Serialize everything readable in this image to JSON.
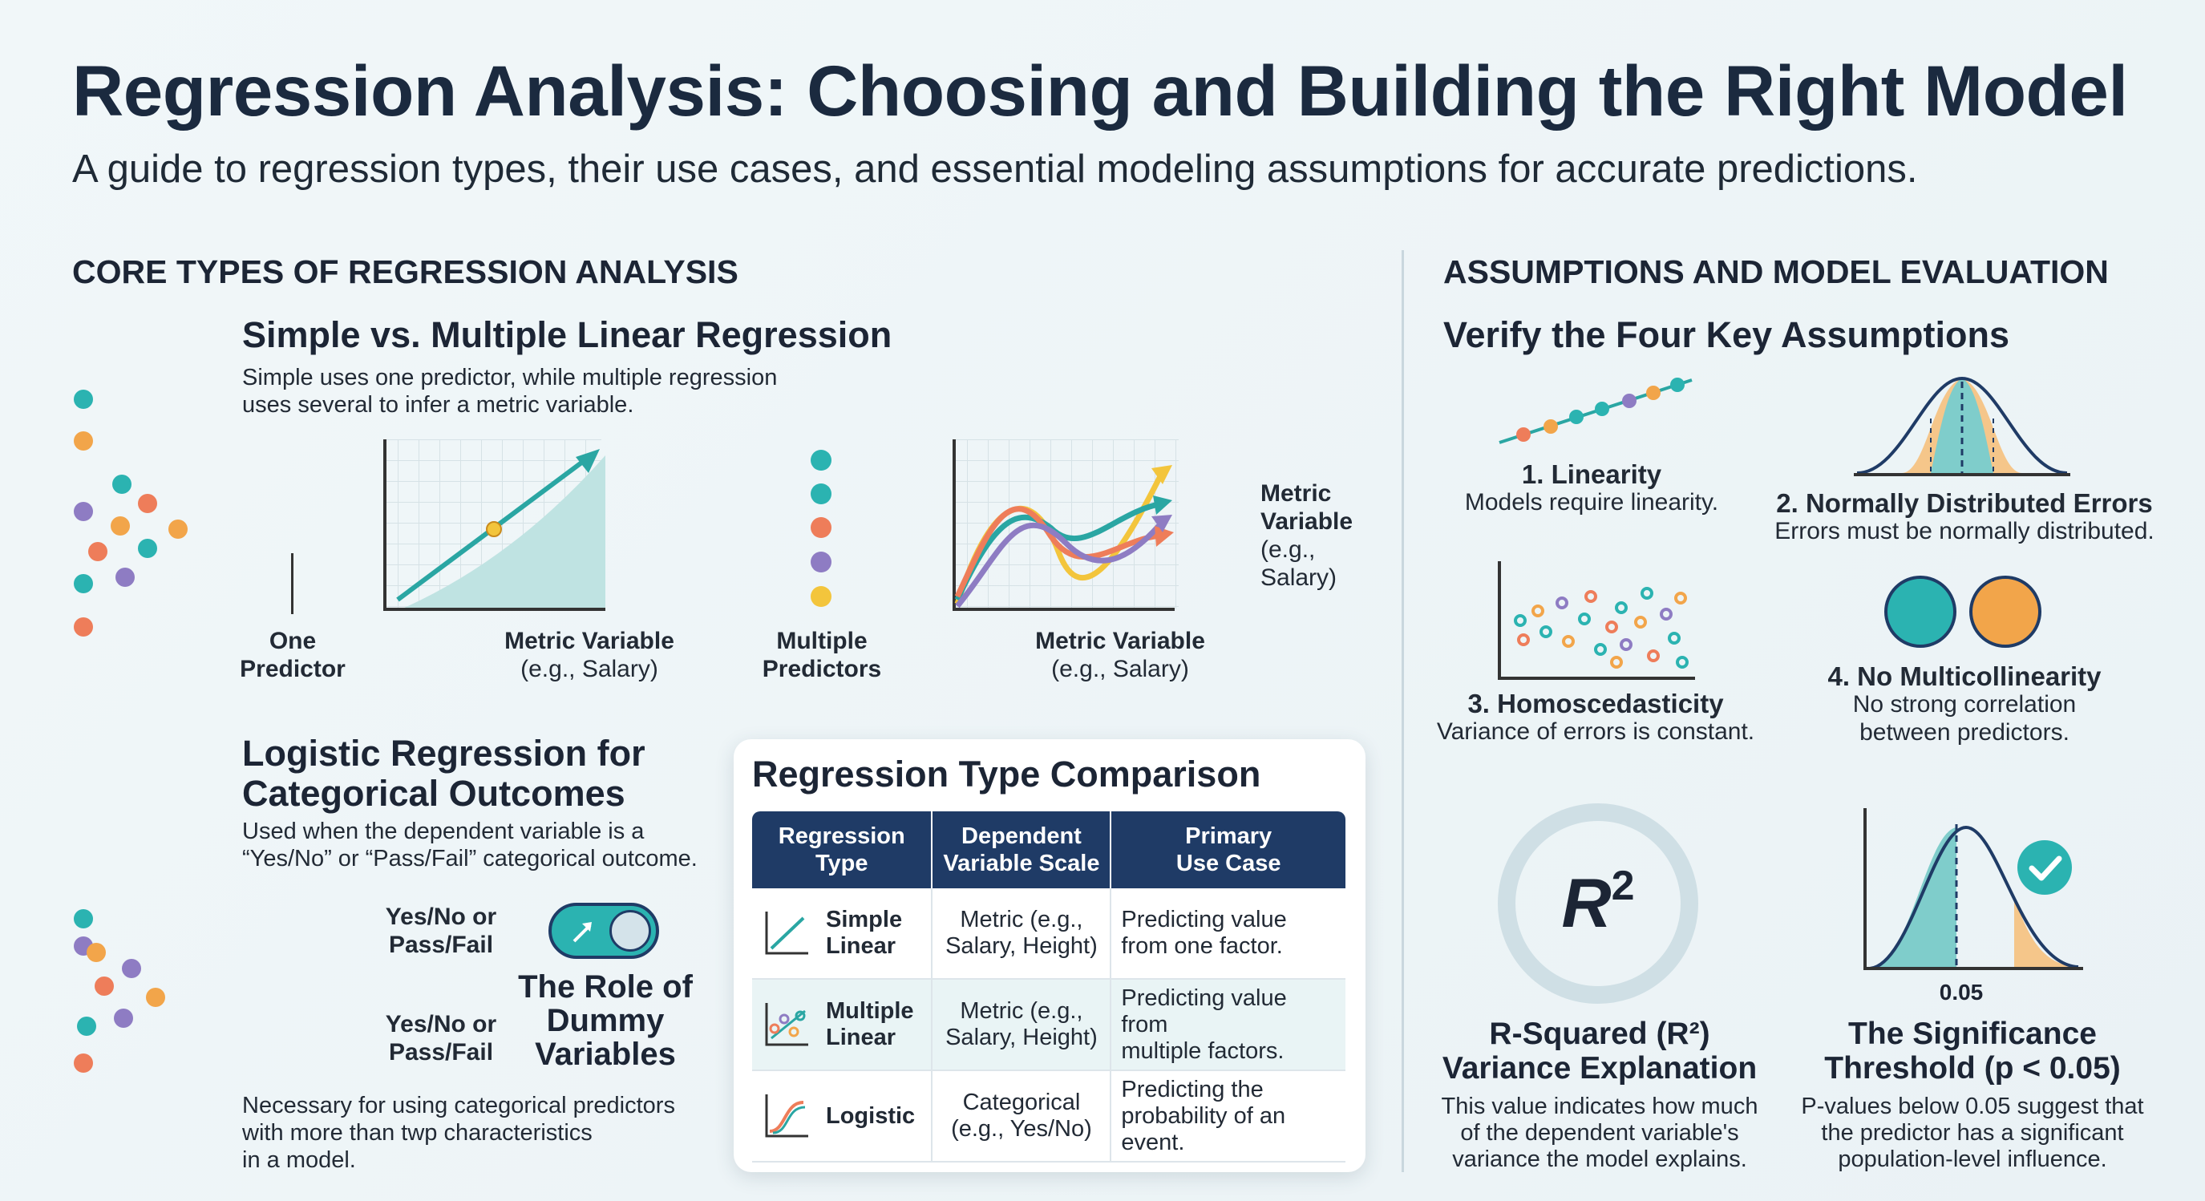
{
  "header": {
    "title": "Regression Analysis: Choosing and Building the Right Model",
    "subtitle": "A guide to regression types, their use cases, and essential modeling assumptions for accurate predictions."
  },
  "left": {
    "section_title": "CORE TYPES OF REGRESSION ANALYSIS",
    "linear": {
      "heading": "Simple vs. Multiple Linear Regression",
      "desc_line1": "Simple uses one predictor, while multiple regression",
      "desc_line2": "uses several to infer a metric variable.",
      "one_predictor_1": "One",
      "one_predictor_2": "Predictor",
      "metric_var_1": "Metric Variable",
      "metric_var_2": "(e.g., Salary)",
      "multiple_predictors_1": "Multiple",
      "multiple_predictors_2": "Predictors",
      "metric_var_b1": "Metric Variable",
      "metric_var_b2": "(e.g., Salary)",
      "metric_side_1": "Metric",
      "metric_side_2": "Variable",
      "metric_side_3": "(e.g.,",
      "metric_side_4": "Salary)"
    },
    "logistic": {
      "heading_1": "Logistic Regression for",
      "heading_2": "Categorical Outcomes",
      "desc_line1": "Used when the dependent variable is a",
      "desc_line2": "“Yes/No” or “Pass/Fail” categorical outcome.",
      "yesno_a1": "Yes/No or",
      "yesno_a2": "Pass/Fail",
      "yesno_b1": "Yes/No or",
      "yesno_b2": "Pass/Fail",
      "dummy_1": "The Role of",
      "dummy_2": "Dummy",
      "dummy_3": "Variables",
      "note_1": "Necessary for using categorical predictors",
      "note_2": "with more than twp characteristics",
      "note_3": "in a model."
    }
  },
  "table": {
    "title": "Regression Type Comparison",
    "headers": [
      "Regression Type",
      "Dependent Variable Scale",
      "Primary Use Case"
    ],
    "h1a": "Regression",
    "h1b": "Type",
    "h2a": "Dependent",
    "h2b": "Variable Scale",
    "h3a": "Primary",
    "h3b": "Use Case",
    "rows": [
      {
        "type_1": "Simple",
        "type_2": "Linear",
        "scale_1": "Metric (e.g.,",
        "scale_2": "Salary, Height)",
        "use_1": "Predicting value",
        "use_2": "from one factor."
      },
      {
        "type_1": "Multiple",
        "type_2": "Linear",
        "scale_1": "Metric (e.g.,",
        "scale_2": "Salary, Height)",
        "use_1": "Predicting value from",
        "use_2": "multiple factors."
      },
      {
        "type_1": "Logistic",
        "type_2": "",
        "scale_1": "Categorical",
        "scale_2": "(e.g., Yes/No)",
        "use_1": "Predicting the",
        "use_2": "probability of an event."
      }
    ]
  },
  "right": {
    "section_title": "ASSUMPTIONS AND MODEL EVALUATION",
    "heading": "Verify the Four Key Assumptions",
    "a1_title": "1. Linearity",
    "a1_desc": "Models require linearity.",
    "a2_title": "2. Normally Distributed Errors",
    "a2_desc": "Errors must be normally distributed.",
    "a3_title": "3. Homoscedasticity",
    "a3_desc": "Variance of errors is constant.",
    "a4_title": "4. No Multicollinearity",
    "a4_desc_1": "No strong correlation",
    "a4_desc_2": "between predictors.",
    "r2_symbol": "R",
    "r2_exp": "2",
    "r2_title_1": "R-Squared (R²)",
    "r2_title_2": "Variance Explanation",
    "r2_desc_1": "This value indicates how much",
    "r2_desc_2": "of the dependent variable's",
    "r2_desc_3": "variance the model explains.",
    "sig_tick": "0.05",
    "sig_title_1": "The Significance",
    "sig_title_2": "Threshold (p < 0.05)",
    "sig_desc_1": "P-values below 0.05 suggest that",
    "sig_desc_2": "the predictor has a significant",
    "sig_desc_3": "population-level influence."
  },
  "colors": {
    "teal": "#2bb3b1",
    "orange": "#f2a54a",
    "coral": "#ee7d5a",
    "purple": "#8e7cc3",
    "navy": "#1f3b66",
    "yellow": "#f3c53c"
  }
}
